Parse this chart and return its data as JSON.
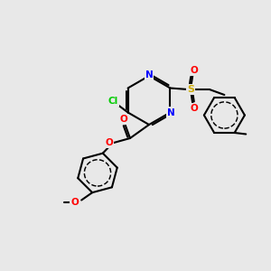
{
  "bg_color": "#e8e8e8",
  "bond_color": "#000000",
  "bond_lw": 1.5,
  "aromatic_sep": 0.06,
  "colors": {
    "N": "#0000ff",
    "O": "#ff0000",
    "Cl": "#00cc00",
    "S": "#ccaa00",
    "C": "#000000"
  }
}
